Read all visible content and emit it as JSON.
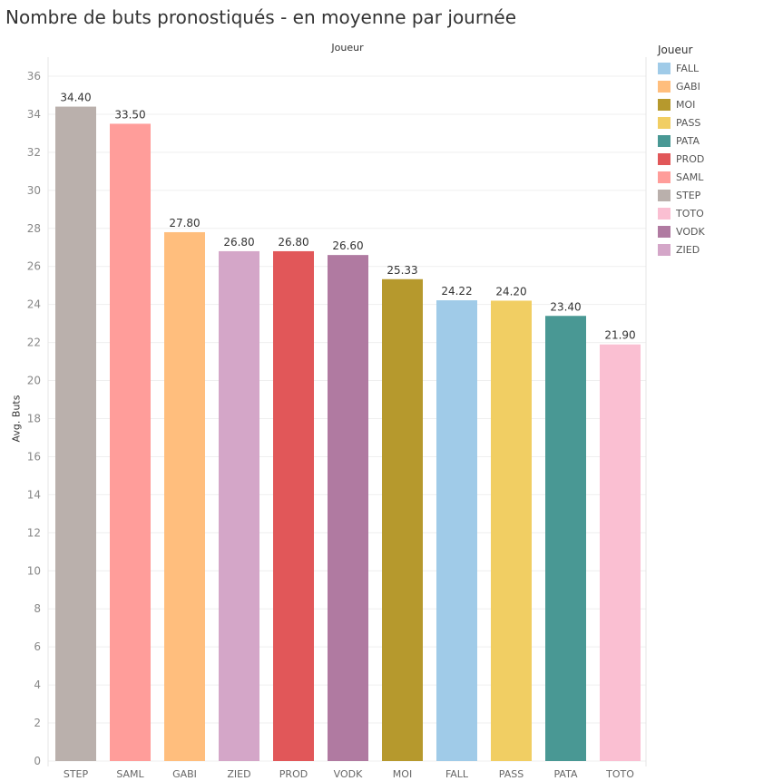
{
  "chart_data": {
    "type": "bar",
    "title": "Nombre de buts pronostiqués - en moyenne par journée",
    "column_header": "Joueur",
    "ylabel": "Avg. Buts",
    "xlabel": "",
    "ylim": [
      0,
      36
    ],
    "yticks": [
      0,
      2,
      4,
      6,
      8,
      10,
      12,
      14,
      16,
      18,
      20,
      22,
      24,
      26,
      28,
      30,
      32,
      34,
      36
    ],
    "grid": true,
    "categories": [
      "STEP",
      "SAML",
      "GABI",
      "ZIED",
      "PROD",
      "VODK",
      "MOI",
      "FALL",
      "PASS",
      "PATA",
      "TOTO"
    ],
    "values": [
      34.4,
      33.5,
      27.8,
      26.8,
      26.8,
      26.6,
      25.33,
      24.22,
      24.2,
      23.4,
      21.9
    ],
    "labels": [
      "34.40",
      "33.50",
      "27.80",
      "26.80",
      "26.80",
      "26.60",
      "25.33",
      "24.22",
      "24.20",
      "23.40",
      "21.90"
    ],
    "legend": {
      "title": "Joueur",
      "placement": "right",
      "entries": [
        {
          "name": "FALL",
          "color": "#a0cbe8"
        },
        {
          "name": "GABI",
          "color": "#ffbe7d"
        },
        {
          "name": "MOI",
          "color": "#b6992d"
        },
        {
          "name": "PASS",
          "color": "#f1ce63"
        },
        {
          "name": "PATA",
          "color": "#499894"
        },
        {
          "name": "PROD",
          "color": "#e15759"
        },
        {
          "name": "SAML",
          "color": "#ff9d9a"
        },
        {
          "name": "STEP",
          "color": "#bab0ac"
        },
        {
          "name": "TOTO",
          "color": "#fabfd2"
        },
        {
          "name": "VODK",
          "color": "#b07aa1"
        },
        {
          "name": "ZIED",
          "color": "#d4a6c8"
        }
      ]
    }
  }
}
